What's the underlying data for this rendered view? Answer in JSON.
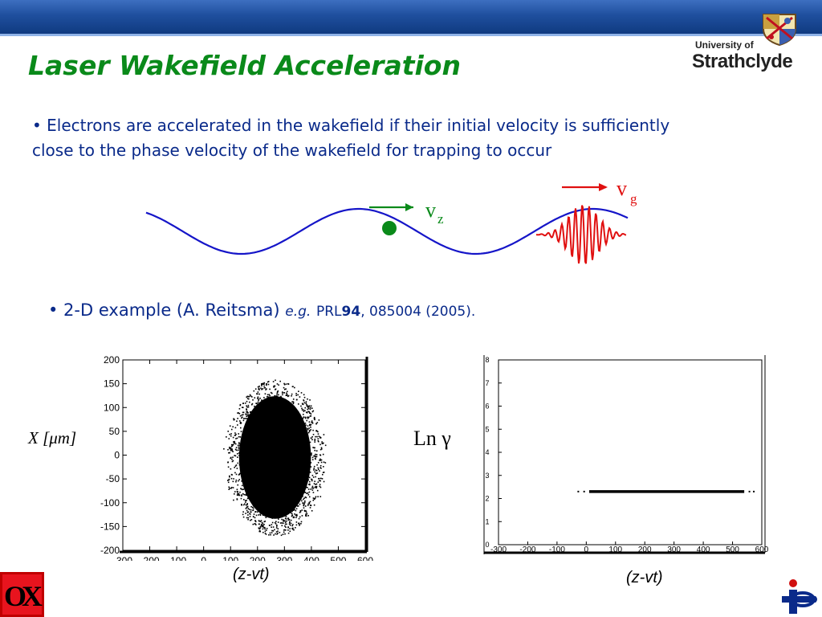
{
  "slide": {
    "title": "Laser Wakefield Acceleration",
    "university_line1": "University of",
    "university_line2": "Strathclyde",
    "bullet1": "• Electrons are  accelerated in the wakefield if their initial velocity is sufficiently close to the phase velocity of the wakefield for trapping to occur",
    "bullet2_main": "• 2-D example (A. Reitsma)",
    "bullet2_eg": "e.g.",
    "bullet2_ref": "PRL",
    "bullet2_vol": "94",
    "bullet2_rest": ", 085004 (2005).",
    "vz_label": "v",
    "vz_sub": "z",
    "vg_label": "v",
    "vg_sub": "g",
    "left_ylabel_pre": "X [",
    "left_ylabel_mu": "μm",
    "left_ylabel_post": "]",
    "right_ylabel": "Ln γ",
    "left_xlabel": "(z-vt)",
    "right_xlabel": "(z-vt)",
    "footer_logo_left": "OX",
    "colors": {
      "title": "#0a8a1a",
      "text": "#0a2a8a",
      "wave": "#1515c8",
      "pulse": "#e01010",
      "electron": "#0a8a1a"
    }
  },
  "chart_data": [
    {
      "type": "scatter",
      "title": "",
      "xlabel": "(z-vt)",
      "ylabel": "X [μm]",
      "xlim": [
        -300,
        600
      ],
      "ylim": [
        -200,
        200
      ],
      "xticks": [
        -300,
        -200,
        -100,
        0,
        100,
        200,
        300,
        400,
        500,
        600
      ],
      "yticks": [
        200,
        150,
        100,
        50,
        0,
        -50,
        -100,
        -150,
        -200
      ],
      "xtick_labels": [
        "-300",
        "-200",
        "-100",
        "0",
        "100",
        "200",
        "300",
        "400",
        "500",
        "600"
      ],
      "ytick_labels": [
        "200",
        "150",
        "100",
        "50",
        "0",
        "-50",
        "-100",
        "-150",
        "-200"
      ],
      "grid": false,
      "cloud": {
        "center_x": 265,
        "center_y": -5,
        "radius_x": 145,
        "radius_y": 140
      }
    },
    {
      "type": "scatter",
      "title": "",
      "xlabel": "(z-vt)",
      "ylabel": "Ln γ",
      "xlim": [
        -300,
        600
      ],
      "ylim": [
        0,
        8
      ],
      "xticks": [
        -300,
        -200,
        -100,
        0,
        100,
        200,
        300,
        400,
        500,
        600
      ],
      "yticks": [
        8,
        7,
        6,
        5,
        4,
        3,
        2,
        1,
        0
      ],
      "xtick_labels": [
        "-300",
        "-200",
        "-100",
        "0",
        "100",
        "200",
        "300",
        "400",
        "500",
        "600"
      ],
      "ytick_labels": [
        "8",
        "7",
        "6",
        "5",
        "4",
        "3",
        "2",
        "1",
        "0"
      ],
      "grid": false,
      "band": {
        "x_start": -30,
        "x_end": 570,
        "y": 2.3
      }
    }
  ]
}
